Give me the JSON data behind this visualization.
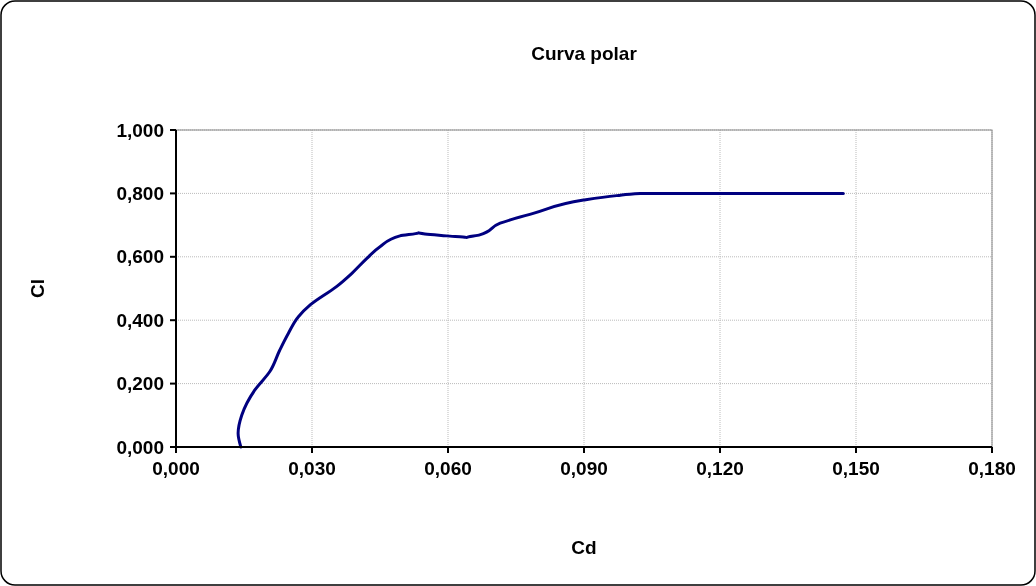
{
  "chart_data": {
    "type": "line",
    "title": "Curva polar",
    "xlabel": "Cd",
    "ylabel": "Cl",
    "xlim": [
      0,
      0.18
    ],
    "xticks": [
      {
        "value": 0,
        "label": "0,000"
      },
      {
        "value": 0.03,
        "label": "0,030"
      },
      {
        "value": 0.06,
        "label": "0,060"
      },
      {
        "value": 0.09,
        "label": "0,090"
      },
      {
        "value": 0.12,
        "label": "0,120"
      },
      {
        "value": 0.15,
        "label": "0,150"
      },
      {
        "value": 0.18,
        "label": "0,180"
      }
    ],
    "ylim": [
      0,
      1
    ],
    "yticks": [
      {
        "value": 0,
        "label": "0,000"
      },
      {
        "value": 0.2,
        "label": "0,200"
      },
      {
        "value": 0.4,
        "label": "0,400"
      },
      {
        "value": 0.6,
        "label": "0,600"
      },
      {
        "value": 0.8,
        "label": "0,800"
      },
      {
        "value": 1,
        "label": "1,000"
      }
    ],
    "grid": true,
    "marker": "none",
    "line_style": "solid",
    "series": [
      {
        "color": "#000080",
        "x": [
          0.0143,
          0.0137,
          0.0145,
          0.0174,
          0.0207,
          0.0229,
          0.0248,
          0.027,
          0.0296,
          0.0354,
          0.0388,
          0.0421,
          0.045,
          0.0494,
          0.0535,
          0.0597,
          0.0641,
          0.067,
          0.0715,
          0.0788,
          0.0899,
          0.0972,
          0.1024,
          0.1472
        ],
        "values": [
          0,
          0.043,
          0.1,
          0.18,
          0.238,
          0.306,
          0.359,
          0.411,
          0.448,
          0.506,
          0.548,
          0.595,
          0.632,
          0.666,
          0.676,
          0.666,
          0.661,
          0.669,
          0.706,
          0.737,
          0.779,
          0.793,
          0.8,
          0.8
        ]
      }
    ]
  }
}
